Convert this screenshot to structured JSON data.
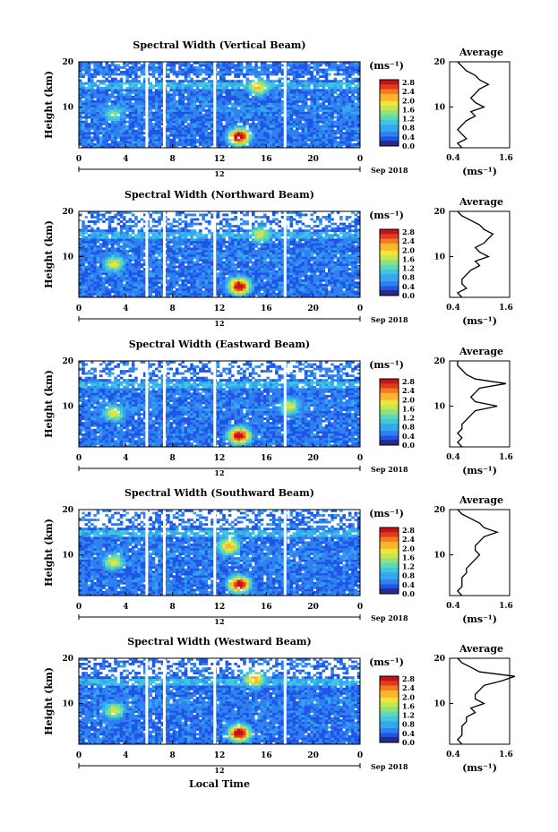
{
  "colors": {
    "scale": [
      "#2a2a8a",
      "#1530c8",
      "#1f55e6",
      "#2f80f0",
      "#35a7ee",
      "#40c7df",
      "#5fd9b6",
      "#8fe07f",
      "#c8e74f",
      "#f1e43a",
      "#fbb62c",
      "#f47b22",
      "#e13d1a",
      "#c2141a"
    ],
    "trace": "#000000"
  },
  "chart_data": {
    "type": "heatmap",
    "x_label": "Local Time",
    "y_label": "Height (km)",
    "x_ticks": [
      "0",
      "4",
      "8",
      "12",
      "16",
      "20",
      "0"
    ],
    "x_range_hours": [
      0,
      24
    ],
    "y_ticks": [
      "10",
      "20"
    ],
    "y_range_km": [
      1,
      20
    ],
    "date_label": "Sep 2018",
    "date_marker": "12",
    "colorbar_unit": "(ms⁻¹)",
    "colorbar_ticks": [
      "2.8",
      "2.4",
      "2.0",
      "1.6",
      "1.2",
      "0.8",
      "0.4",
      "0.0"
    ],
    "colorbar_range": [
      0.0,
      2.8
    ],
    "data_gaps_hours": [
      5.8,
      7.3,
      11.6,
      17.6
    ],
    "panels": [
      {
        "title": "Spectral Width (Vertical Beam)",
        "features": [
          {
            "t": 13.7,
            "h": 3.5,
            "value": 2.8
          },
          {
            "t": 3.0,
            "h": 8.5,
            "value": 1.2
          },
          {
            "t": 15.3,
            "h": 14.5,
            "value": 1.8
          }
        ]
      },
      {
        "title": "Spectral Width (Northward Beam)",
        "features": [
          {
            "t": 13.7,
            "h": 3.5,
            "value": 2.8
          },
          {
            "t": 3.0,
            "h": 8.5,
            "value": 1.6
          },
          {
            "t": 15.5,
            "h": 15.0,
            "value": 1.6
          }
        ]
      },
      {
        "title": "Spectral Width (Eastward Beam)",
        "features": [
          {
            "t": 13.7,
            "h": 3.5,
            "value": 2.8
          },
          {
            "t": 3.0,
            "h": 8.5,
            "value": 1.6
          },
          {
            "t": 18.0,
            "h": 10.0,
            "value": 1.6
          }
        ]
      },
      {
        "title": "Spectral Width (Southward Beam)",
        "features": [
          {
            "t": 13.7,
            "h": 3.5,
            "value": 2.8
          },
          {
            "t": 3.0,
            "h": 8.5,
            "value": 1.6
          },
          {
            "t": 12.8,
            "h": 12.0,
            "value": 2.0
          }
        ]
      },
      {
        "title": "Spectral Width (Westward Beam)",
        "features": [
          {
            "t": 13.7,
            "h": 3.5,
            "value": 2.8
          },
          {
            "t": 3.0,
            "h": 8.5,
            "value": 1.6
          },
          {
            "t": 15.0,
            "h": 15.5,
            "value": 2.0
          }
        ]
      }
    ],
    "average": {
      "title": "Average",
      "x_label": "(ms⁻¹)",
      "x_ticks": [
        "0.4",
        "1.6"
      ],
      "x_range": [
        0.4,
        1.6
      ],
      "y_ticks": [
        "10",
        "20"
      ],
      "y_range_km": [
        1,
        20
      ],
      "profiles": [
        {
          "height_km": [
            1,
            2,
            3,
            4,
            5,
            6,
            7,
            8,
            9,
            10,
            11,
            12,
            13,
            14,
            15,
            16,
            17,
            18,
            19,
            20
          ],
          "width": [
            0.6,
            0.5,
            0.7,
            0.6,
            0.5,
            0.6,
            0.7,
            0.9,
            0.8,
            1.1,
            0.9,
            0.8,
            0.9,
            1.0,
            1.2,
            1.0,
            0.9,
            0.7,
            0.6,
            0.5
          ]
        },
        {
          "height_km": [
            1,
            2,
            3,
            4,
            5,
            6,
            7,
            8,
            9,
            10,
            11,
            12,
            13,
            14,
            15,
            16,
            17,
            18,
            19,
            20
          ],
          "width": [
            0.6,
            0.5,
            0.7,
            0.6,
            0.6,
            0.7,
            0.8,
            1.0,
            0.9,
            1.2,
            1.0,
            0.9,
            1.1,
            1.2,
            1.3,
            1.1,
            1.0,
            0.8,
            0.6,
            0.5
          ]
        },
        {
          "height_km": [
            1,
            2,
            3,
            4,
            5,
            6,
            7,
            8,
            9,
            10,
            11,
            12,
            13,
            14,
            15,
            16,
            17,
            18,
            19,
            20
          ],
          "width": [
            0.6,
            0.5,
            0.6,
            0.5,
            0.6,
            0.6,
            0.7,
            0.8,
            0.9,
            1.4,
            0.9,
            0.8,
            0.9,
            1.0,
            1.6,
            0.9,
            0.7,
            0.6,
            0.5,
            0.5
          ]
        },
        {
          "height_km": [
            1,
            2,
            3,
            4,
            5,
            6,
            7,
            8,
            9,
            10,
            11,
            12,
            13,
            14,
            15,
            16,
            17,
            18,
            19,
            20
          ],
          "width": [
            0.6,
            0.5,
            0.6,
            0.6,
            0.6,
            0.7,
            0.7,
            0.8,
            0.9,
            1.0,
            0.9,
            0.9,
            1.0,
            1.1,
            1.4,
            1.1,
            1.0,
            0.8,
            0.6,
            0.5
          ]
        },
        {
          "height_km": [
            1,
            2,
            3,
            4,
            5,
            6,
            7,
            8,
            9,
            10,
            11,
            12,
            13,
            14,
            15,
            16,
            17,
            18,
            19,
            20
          ],
          "width": [
            0.6,
            0.5,
            0.6,
            0.6,
            0.6,
            0.7,
            0.7,
            0.9,
            0.8,
            1.1,
            0.9,
            0.9,
            1.0,
            1.1,
            1.5,
            1.8,
            1.0,
            0.8,
            0.6,
            0.5
          ]
        }
      ]
    }
  }
}
